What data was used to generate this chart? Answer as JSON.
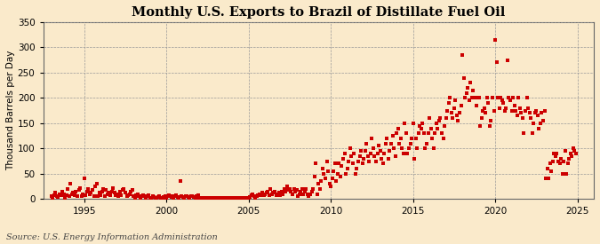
{
  "title": "Monthly U.S. Exports to Brazil of Distillate Fuel Oil",
  "ylabel": "Thousand Barrels per Day",
  "source": "Source: U.S. Energy Information Administration",
  "background_color": "#faeacb",
  "plot_background_color": "#faeacb",
  "dot_color": "#cc0000",
  "dot_size": 7,
  "xlim": [
    1992.5,
    2026
  ],
  "ylim": [
    0,
    350
  ],
  "yticks": [
    0,
    50,
    100,
    150,
    200,
    250,
    300,
    350
  ],
  "xticks": [
    1995,
    2000,
    2005,
    2010,
    2015,
    2020,
    2025
  ],
  "grid_color": "#999999",
  "title_fontsize": 10.5,
  "label_fontsize": 7.5,
  "tick_fontsize": 7.5,
  "source_fontsize": 7,
  "data": {
    "dates": [
      1993.0,
      1993.083,
      1993.167,
      1993.25,
      1993.333,
      1993.417,
      1993.5,
      1993.583,
      1993.667,
      1993.75,
      1993.833,
      1993.917,
      1994.0,
      1994.083,
      1994.167,
      1994.25,
      1994.333,
      1994.417,
      1994.5,
      1994.583,
      1994.667,
      1994.75,
      1994.833,
      1994.917,
      1995.0,
      1995.083,
      1995.167,
      1995.25,
      1995.333,
      1995.417,
      1995.5,
      1995.583,
      1995.667,
      1995.75,
      1995.833,
      1995.917,
      1996.0,
      1996.083,
      1996.167,
      1996.25,
      1996.333,
      1996.417,
      1996.5,
      1996.583,
      1996.667,
      1996.75,
      1996.833,
      1996.917,
      1997.0,
      1997.083,
      1997.167,
      1997.25,
      1997.333,
      1997.417,
      1997.5,
      1997.583,
      1997.667,
      1997.75,
      1997.833,
      1997.917,
      1998.0,
      1998.083,
      1998.167,
      1998.25,
      1998.333,
      1998.417,
      1998.5,
      1998.583,
      1998.667,
      1998.75,
      1998.833,
      1998.917,
      1999.0,
      1999.083,
      1999.167,
      1999.25,
      1999.333,
      1999.417,
      1999.5,
      1999.583,
      1999.667,
      1999.75,
      1999.833,
      1999.917,
      2000.0,
      2000.083,
      2000.167,
      2000.25,
      2000.333,
      2000.417,
      2000.5,
      2000.583,
      2000.667,
      2000.75,
      2000.833,
      2000.917,
      2001.0,
      2001.083,
      2001.167,
      2001.25,
      2001.333,
      2001.417,
      2001.5,
      2001.583,
      2001.667,
      2001.75,
      2001.833,
      2001.917,
      2002.0,
      2002.083,
      2002.167,
      2002.25,
      2002.333,
      2002.417,
      2002.5,
      2002.583,
      2002.667,
      2002.75,
      2002.833,
      2002.917,
      2003.0,
      2003.083,
      2003.167,
      2003.25,
      2003.333,
      2003.417,
      2003.5,
      2003.583,
      2003.667,
      2003.75,
      2003.833,
      2003.917,
      2004.0,
      2004.083,
      2004.167,
      2004.25,
      2004.333,
      2004.417,
      2004.5,
      2004.583,
      2004.667,
      2004.75,
      2004.833,
      2004.917,
      2005.0,
      2005.083,
      2005.167,
      2005.25,
      2005.333,
      2005.417,
      2005.5,
      2005.583,
      2005.667,
      2005.75,
      2005.833,
      2005.917,
      2006.0,
      2006.083,
      2006.167,
      2006.25,
      2006.333,
      2006.417,
      2006.5,
      2006.583,
      2006.667,
      2006.75,
      2006.833,
      2006.917,
      2007.0,
      2007.083,
      2007.167,
      2007.25,
      2007.333,
      2007.417,
      2007.5,
      2007.583,
      2007.667,
      2007.75,
      2007.833,
      2007.917,
      2008.0,
      2008.083,
      2008.167,
      2008.25,
      2008.333,
      2008.417,
      2008.5,
      2008.583,
      2008.667,
      2008.75,
      2008.833,
      2008.917,
      2009.0,
      2009.083,
      2009.167,
      2009.25,
      2009.333,
      2009.417,
      2009.5,
      2009.583,
      2009.667,
      2009.75,
      2009.833,
      2009.917,
      2010.0,
      2010.083,
      2010.167,
      2010.25,
      2010.333,
      2010.417,
      2010.5,
      2010.583,
      2010.667,
      2010.75,
      2010.833,
      2010.917,
      2011.0,
      2011.083,
      2011.167,
      2011.25,
      2011.333,
      2011.417,
      2011.5,
      2011.583,
      2011.667,
      2011.75,
      2011.833,
      2011.917,
      2012.0,
      2012.083,
      2012.167,
      2012.25,
      2012.333,
      2012.417,
      2012.5,
      2012.583,
      2012.667,
      2012.75,
      2012.833,
      2012.917,
      2013.0,
      2013.083,
      2013.167,
      2013.25,
      2013.333,
      2013.417,
      2013.5,
      2013.583,
      2013.667,
      2013.75,
      2013.833,
      2013.917,
      2014.0,
      2014.083,
      2014.167,
      2014.25,
      2014.333,
      2014.417,
      2014.5,
      2014.583,
      2014.667,
      2014.75,
      2014.833,
      2014.917,
      2015.0,
      2015.083,
      2015.167,
      2015.25,
      2015.333,
      2015.417,
      2015.5,
      2015.583,
      2015.667,
      2015.75,
      2015.833,
      2015.917,
      2016.0,
      2016.083,
      2016.167,
      2016.25,
      2016.333,
      2016.417,
      2016.5,
      2016.583,
      2016.667,
      2016.75,
      2016.833,
      2016.917,
      2017.0,
      2017.083,
      2017.167,
      2017.25,
      2017.333,
      2017.417,
      2017.5,
      2017.583,
      2017.667,
      2017.75,
      2017.833,
      2017.917,
      2018.0,
      2018.083,
      2018.167,
      2018.25,
      2018.333,
      2018.417,
      2018.5,
      2018.583,
      2018.667,
      2018.75,
      2018.833,
      2018.917,
      2019.0,
      2019.083,
      2019.167,
      2019.25,
      2019.333,
      2019.417,
      2019.5,
      2019.583,
      2019.667,
      2019.75,
      2019.833,
      2019.917,
      2020.0,
      2020.083,
      2020.167,
      2020.25,
      2020.333,
      2020.417,
      2020.5,
      2020.583,
      2020.667,
      2020.75,
      2020.833,
      2020.917,
      2021.0,
      2021.083,
      2021.167,
      2021.25,
      2021.333,
      2021.417,
      2021.5,
      2021.583,
      2021.667,
      2021.75,
      2021.833,
      2021.917,
      2022.0,
      2022.083,
      2022.167,
      2022.25,
      2022.333,
      2022.417,
      2022.5,
      2022.583,
      2022.667,
      2022.75,
      2022.833,
      2022.917,
      2023.0,
      2023.083,
      2023.167,
      2023.25,
      2023.333,
      2023.417,
      2023.5,
      2023.583,
      2023.667,
      2023.75,
      2023.833,
      2023.917,
      2024.0,
      2024.083,
      2024.167,
      2024.25,
      2024.333,
      2024.417,
      2024.5,
      2024.583,
      2024.667,
      2024.75,
      2024.833,
      2024.917
    ],
    "values": [
      5,
      3,
      8,
      12,
      6,
      4,
      9,
      7,
      15,
      10,
      3,
      8,
      20,
      5,
      30,
      10,
      12,
      8,
      15,
      6,
      18,
      22,
      5,
      10,
      40,
      8,
      15,
      20,
      10,
      12,
      18,
      5,
      25,
      30,
      6,
      12,
      8,
      15,
      20,
      5,
      18,
      10,
      12,
      8,
      15,
      22,
      12,
      8,
      10,
      5,
      15,
      8,
      18,
      20,
      12,
      6,
      8,
      10,
      15,
      18,
      5,
      3,
      8,
      10,
      5,
      3,
      6,
      8,
      5,
      3,
      6,
      8,
      2,
      3,
      5,
      4,
      3,
      2,
      4,
      5,
      3,
      2,
      4,
      6,
      3,
      5,
      8,
      6,
      4,
      3,
      5,
      7,
      4,
      3,
      35,
      5,
      4,
      3,
      5,
      6,
      4,
      3,
      5,
      6,
      4,
      3,
      5,
      7,
      3,
      2,
      2,
      2,
      2,
      2,
      2,
      2,
      2,
      2,
      2,
      2,
      2,
      2,
      2,
      2,
      2,
      2,
      2,
      2,
      2,
      2,
      2,
      2,
      2,
      2,
      2,
      2,
      2,
      2,
      2,
      2,
      2,
      2,
      2,
      2,
      3,
      4,
      8,
      10,
      5,
      3,
      5,
      8,
      10,
      8,
      12,
      8,
      10,
      12,
      15,
      8,
      20,
      10,
      12,
      15,
      8,
      10,
      12,
      8,
      15,
      10,
      20,
      15,
      25,
      18,
      20,
      15,
      10,
      20,
      15,
      18,
      5,
      10,
      15,
      20,
      10,
      15,
      20,
      10,
      5,
      10,
      15,
      20,
      45,
      70,
      10,
      30,
      20,
      35,
      60,
      50,
      40,
      75,
      55,
      30,
      25,
      40,
      55,
      70,
      35,
      50,
      70,
      45,
      65,
      80,
      90,
      50,
      60,
      75,
      100,
      85,
      70,
      90,
      50,
      60,
      75,
      85,
      95,
      70,
      80,
      95,
      110,
      85,
      75,
      90,
      120,
      100,
      85,
      75,
      90,
      105,
      95,
      80,
      70,
      90,
      110,
      120,
      80,
      95,
      110,
      125,
      100,
      85,
      130,
      140,
      110,
      120,
      100,
      90,
      150,
      130,
      90,
      100,
      110,
      120,
      150,
      80,
      120,
      100,
      130,
      145,
      140,
      150,
      130,
      100,
      110,
      130,
      160,
      140,
      120,
      100,
      130,
      150,
      140,
      155,
      160,
      130,
      120,
      145,
      160,
      175,
      190,
      200,
      170,
      160,
      180,
      195,
      165,
      155,
      170,
      185,
      285,
      240,
      200,
      210,
      220,
      195,
      230,
      200,
      215,
      200,
      185,
      200,
      200,
      145,
      160,
      175,
      180,
      170,
      200,
      190,
      145,
      155,
      200,
      175,
      315,
      270,
      200,
      180,
      200,
      195,
      190,
      175,
      180,
      275,
      200,
      195,
      175,
      200,
      185,
      175,
      165,
      200,
      180,
      170,
      160,
      130,
      175,
      200,
      180,
      170,
      160,
      130,
      150,
      170,
      175,
      165,
      140,
      150,
      170,
      155,
      175,
      40,
      60,
      40,
      70,
      55,
      75,
      90,
      85,
      90,
      75,
      70,
      80,
      50,
      75,
      95,
      50,
      70,
      80,
      90,
      85,
      100,
      95,
      90
    ]
  }
}
